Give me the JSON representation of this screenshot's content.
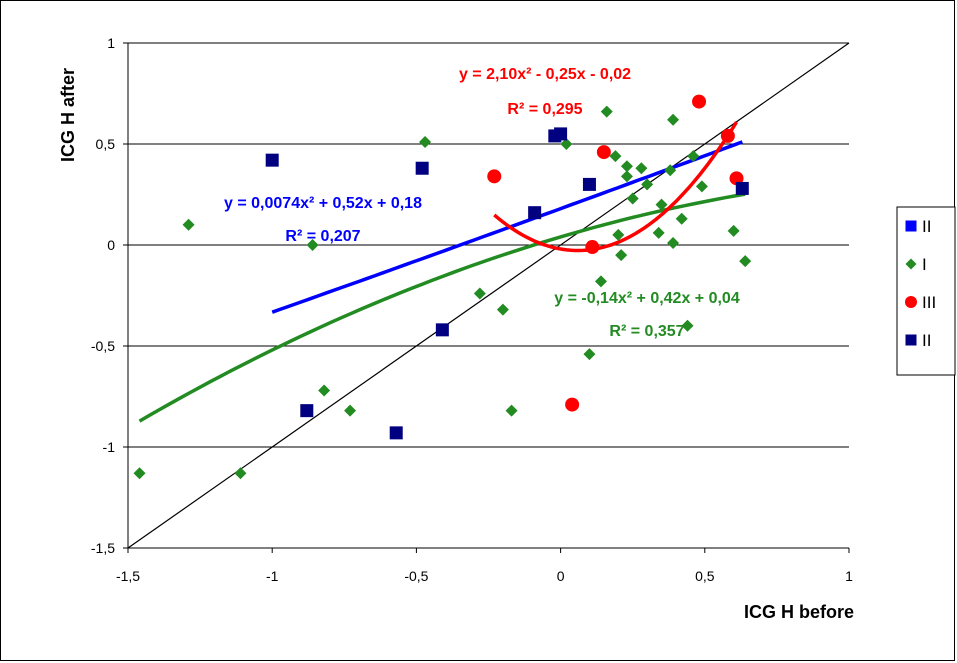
{
  "chart_data": {
    "type": "scatter",
    "xlabel": "ICG H before",
    "ylabel": "ICG H after",
    "xlim": [
      -1.5,
      1
    ],
    "ylim": [
      -1.5,
      1
    ],
    "x_ticks": [
      "-1,5",
      "-1",
      "-0,5",
      "0",
      "0,5",
      "1"
    ],
    "y_ticks": [
      "-1,5",
      "-1",
      "-0,5",
      "0",
      "0,5",
      "1"
    ],
    "x_tick_values": [
      -1.5,
      -1,
      -0.5,
      0,
      0.5,
      1
    ],
    "y_tick_values": [
      -1.5,
      -1,
      -0.5,
      0,
      0.5,
      1
    ],
    "grid": "horizontal",
    "legend_position": "right",
    "identity_line": true,
    "series": [
      {
        "name": "II",
        "marker": "square",
        "color": "#0000ff",
        "points": [],
        "trendline": {
          "a": 0.0074,
          "b": 0.52,
          "c": 0.18,
          "x_range": [
            -1.0,
            0.63
          ],
          "equation": "y = 0,0074x² + 0,52x + 0,18",
          "r2": "R² = 0,207"
        }
      },
      {
        "name": "I",
        "marker": "diamond",
        "color": "#228b22",
        "points": [
          [
            -1.46,
            -1.13
          ],
          [
            -1.29,
            0.1
          ],
          [
            -1.11,
            -1.13
          ],
          [
            -0.86,
            0.0
          ],
          [
            -0.82,
            -0.72
          ],
          [
            -0.73,
            -0.82
          ],
          [
            -0.47,
            0.51
          ],
          [
            -0.28,
            -0.24
          ],
          [
            -0.2,
            -0.32
          ],
          [
            -0.17,
            -0.82
          ],
          [
            0.02,
            0.5
          ],
          [
            0.1,
            -0.54
          ],
          [
            0.14,
            -0.18
          ],
          [
            0.16,
            0.66
          ],
          [
            0.19,
            0.44
          ],
          [
            0.2,
            0.05
          ],
          [
            0.21,
            -0.05
          ],
          [
            0.23,
            0.39
          ],
          [
            0.23,
            0.34
          ],
          [
            0.25,
            0.23
          ],
          [
            0.28,
            0.38
          ],
          [
            0.3,
            0.3
          ],
          [
            0.34,
            0.06
          ],
          [
            0.35,
            0.2
          ],
          [
            0.38,
            0.37
          ],
          [
            0.39,
            0.62
          ],
          [
            0.39,
            0.01
          ],
          [
            0.42,
            0.13
          ],
          [
            0.44,
            -0.4
          ],
          [
            0.46,
            0.44
          ],
          [
            0.49,
            0.29
          ],
          [
            0.6,
            0.07
          ],
          [
            0.64,
            -0.08
          ]
        ],
        "trendline": {
          "a": -0.14,
          "b": 0.42,
          "c": 0.04,
          "x_range": [
            -1.46,
            0.64
          ],
          "equation": "y = -0,14x² + 0,42x + 0,04",
          "r2": "R² = 0,357"
        }
      },
      {
        "name": "III",
        "marker": "circle",
        "color": "#ff0000",
        "points": [
          [
            -0.23,
            0.34
          ],
          [
            0.04,
            -0.79
          ],
          [
            0.11,
            -0.01
          ],
          [
            0.15,
            0.46
          ],
          [
            0.48,
            0.71
          ],
          [
            0.58,
            0.54
          ],
          [
            0.61,
            0.33
          ]
        ],
        "trendline": {
          "a": 2.1,
          "b": -0.25,
          "c": -0.02,
          "x_range": [
            -0.23,
            0.61
          ],
          "equation": "y = 2,10x² - 0,25x - 0,02",
          "r2": "R² = 0,295"
        }
      },
      {
        "name": "II",
        "marker": "square",
        "color": "#000080",
        "points": [
          [
            -1.0,
            0.42
          ],
          [
            -0.88,
            -0.82
          ],
          [
            -0.57,
            -0.93
          ],
          [
            -0.48,
            0.38
          ],
          [
            -0.41,
            -0.42
          ],
          [
            -0.09,
            0.16
          ],
          [
            -0.02,
            0.54
          ],
          [
            0.0,
            0.55
          ],
          [
            0.1,
            0.3
          ],
          [
            0.63,
            0.28
          ]
        ]
      }
    ]
  }
}
